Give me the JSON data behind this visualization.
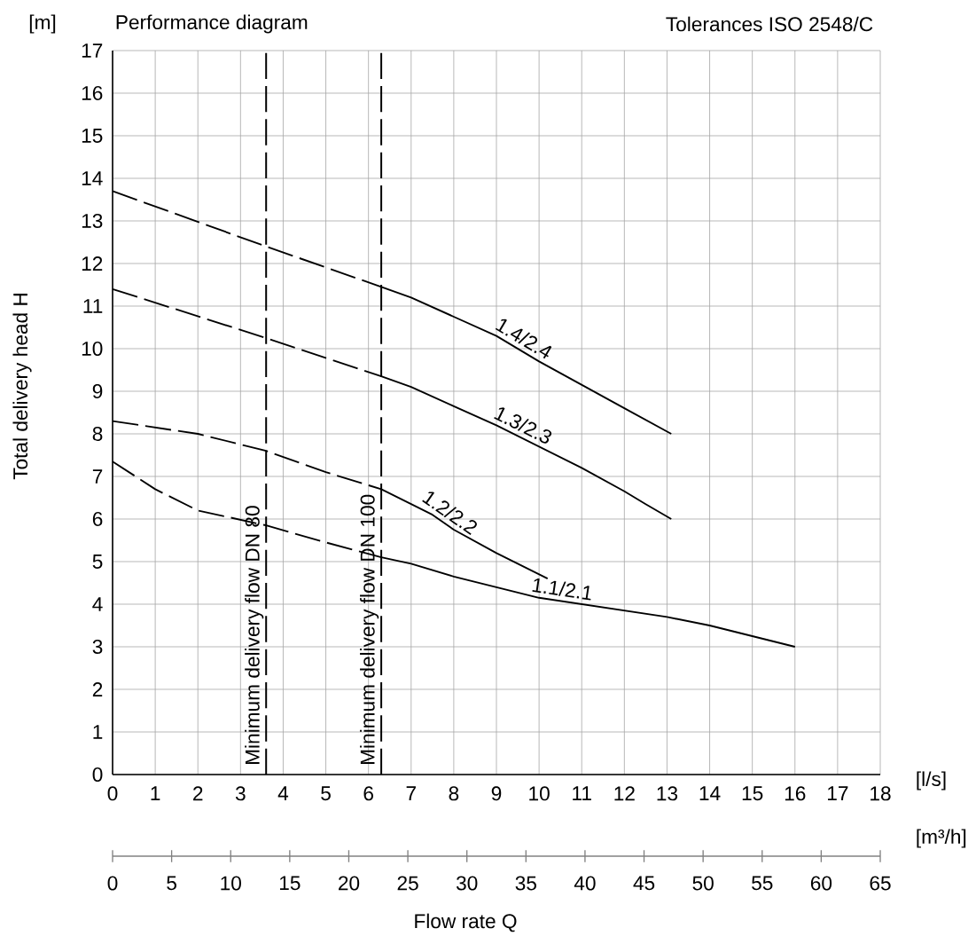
{
  "chart_data": {
    "type": "line",
    "title": "Performance diagram",
    "subtitle": "Tolerances ISO 2548/C",
    "xlabel": "[l/s]",
    "ylabel": "Total delivery head H",
    "x2label": "[m³/h]",
    "annotations": [
      "[m]",
      "Flow rate Q"
    ],
    "xlim": [
      0,
      18
    ],
    "ylim": [
      0,
      17
    ],
    "xticks": [
      0,
      1,
      2,
      3,
      4,
      5,
      6,
      7,
      8,
      9,
      10,
      11,
      12,
      13,
      14,
      15,
      16,
      17,
      18
    ],
    "yticks": [
      0,
      1,
      2,
      3,
      4,
      5,
      6,
      7,
      8,
      9,
      10,
      11,
      12,
      13,
      14,
      15,
      16,
      17
    ],
    "x2lim": [
      0,
      65
    ],
    "x2ticks": [
      0,
      5,
      10,
      15,
      20,
      25,
      30,
      35,
      40,
      45,
      50,
      55,
      60,
      65
    ],
    "grid": true,
    "series": [
      {
        "color": "#000000",
        "line_style": "dashed",
        "x": [
          0,
          3.6,
          6.3
        ],
        "values": [
          13.7,
          12.4,
          11.45
        ]
      },
      {
        "name": "1.4/2.4",
        "color": "#000000",
        "line_style": "solid",
        "x": [
          6.3,
          7,
          8,
          9,
          10,
          11,
          12,
          13.1
        ],
        "values": [
          11.45,
          11.2,
          10.75,
          10.3,
          9.7,
          9.15,
          8.6,
          8.0
        ]
      },
      {
        "color": "#000000",
        "line_style": "dashed",
        "x": [
          0,
          3.6,
          6.3
        ],
        "values": [
          11.4,
          10.25,
          9.35
        ]
      },
      {
        "name": "1.3/2.3",
        "color": "#000000",
        "line_style": "solid",
        "x": [
          6.3,
          7,
          8,
          9,
          10,
          11,
          12,
          12.5,
          13.1
        ],
        "values": [
          9.35,
          9.1,
          8.65,
          8.2,
          7.7,
          7.2,
          6.65,
          6.35,
          6.0
        ]
      },
      {
        "color": "#000000",
        "line_style": "dashed",
        "x": [
          0,
          2,
          3.6,
          5,
          6.3
        ],
        "values": [
          8.3,
          8.0,
          7.6,
          7.1,
          6.7
        ]
      },
      {
        "name": "1.2/2.2",
        "color": "#000000",
        "line_style": "solid",
        "x": [
          6.3,
          7,
          7.5,
          8,
          9,
          10.2
        ],
        "values": [
          6.7,
          6.35,
          6.1,
          5.75,
          5.2,
          4.6
        ]
      },
      {
        "color": "#000000",
        "line_style": "dashed",
        "x": [
          0,
          1,
          2,
          3.6,
          5,
          6.3
        ],
        "values": [
          7.35,
          6.7,
          6.2,
          5.85,
          5.45,
          5.1
        ]
      },
      {
        "name": "1.1/2.1",
        "color": "#000000",
        "line_style": "solid",
        "x": [
          6.3,
          7,
          8,
          9,
          10,
          11,
          12,
          13,
          14,
          15,
          16
        ],
        "values": [
          5.1,
          4.95,
          4.65,
          4.4,
          4.15,
          4.0,
          3.85,
          3.7,
          3.5,
          3.25,
          3.0
        ]
      }
    ],
    "ref_lines": [
      {
        "axis": "x",
        "value": 3.6,
        "label": "Minimum delivery flow DN 80",
        "line_style": "dashed",
        "color": "#000000"
      },
      {
        "axis": "x",
        "value": 6.3,
        "label": "Minimum delivery flow DN 100",
        "line_style": "dashed",
        "color": "#000000"
      }
    ]
  }
}
